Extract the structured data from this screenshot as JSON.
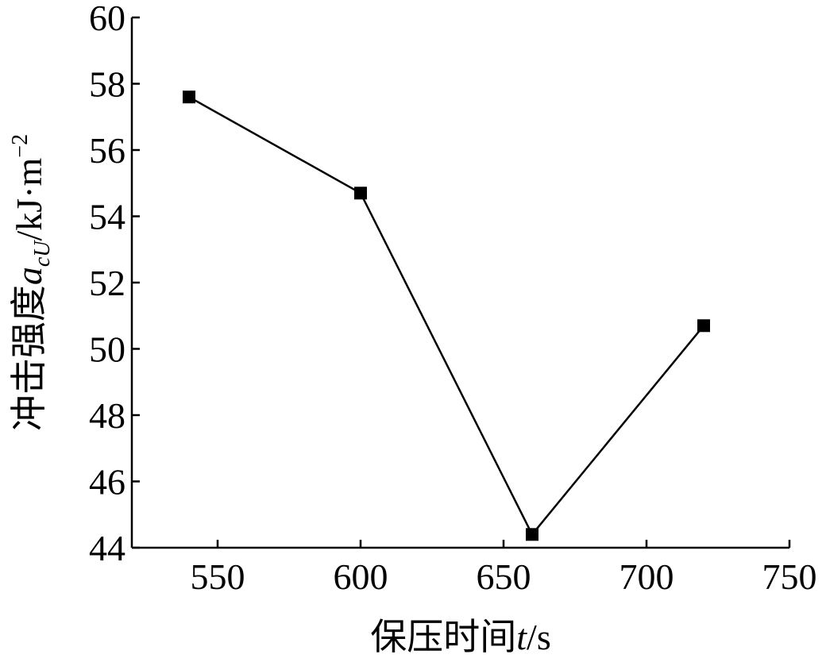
{
  "chart_data": {
    "type": "line",
    "xlabel": [
      "保压时间",
      "t",
      "/s"
    ],
    "ylabel": [
      "冲击强度",
      "a",
      "cU",
      "/kJ·m",
      "−2"
    ],
    "x": [
      540,
      600,
      660,
      720
    ],
    "series": [
      {
        "color": "#000000",
        "values": [
          57.6,
          54.7,
          44.4,
          50.7
        ]
      }
    ],
    "xlim": [
      520,
      750
    ],
    "xticks": [
      550,
      600,
      650,
      700,
      750
    ],
    "ylim": [
      44,
      60
    ],
    "yticks": [
      44,
      46,
      48,
      50,
      52,
      54,
      56,
      58,
      60
    ]
  }
}
